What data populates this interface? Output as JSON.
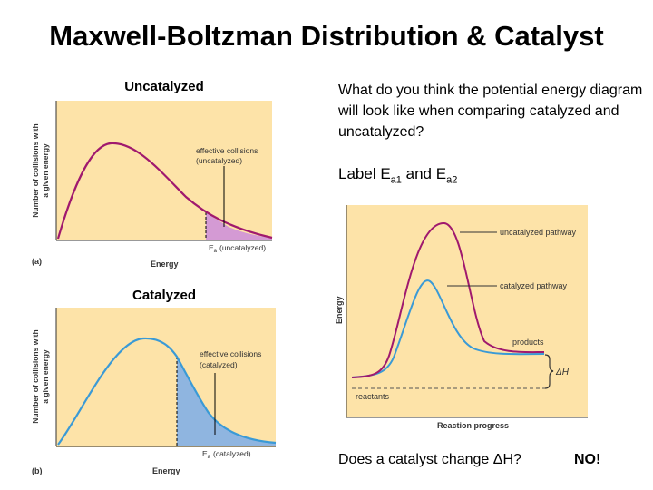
{
  "slide": {
    "title": "Maxwell-Boltzman Distribution & Catalyst",
    "prompt": "What do you think the potential energy diagram will look like when comparing catalyzed and uncatalyzed?",
    "label_ea": {
      "prefix": "Label E",
      "sub1": "a1",
      "mid": " and E",
      "sub2": "a2"
    },
    "question": "Does a catalyst change ΔH?",
    "answer": "NO!"
  },
  "uncatalyzed": {
    "caption": "Uncatalyzed",
    "ylabel_line1": "Number of collisions with",
    "ylabel_line2": "a given energy",
    "annotation_line1": "effective collisions",
    "annotation_line2": "(uncatalyzed)",
    "ea_label": "(uncatalyzed)",
    "xlabel": "Energy",
    "panel": "(a)",
    "colors": {
      "curve": "#a0196e",
      "fill": "#d49ad4",
      "bg": "#fde3a8"
    }
  },
  "catalyzed": {
    "caption": "Catalyzed",
    "ylabel_line1": "Number of collisions with",
    "ylabel_line2": "a given energy",
    "annotation_line1": "effective collisions",
    "annotation_line2": "(catalyzed)",
    "ea_label": "(catalyzed)",
    "xlabel": "Energy",
    "panel": "(b)",
    "colors": {
      "curve": "#3a9ad6",
      "fill": "#8fb5e0",
      "bg": "#fde3a8"
    }
  },
  "energy_diagram": {
    "ylabel": "Energy",
    "xlabel": "Reaction progress",
    "uncatalyzed_label": "uncatalyzed pathway",
    "catalyzed_label": "catalyzed pathway",
    "products_label": "products",
    "reactants_label": "reactants",
    "dh_label": "ΔH",
    "colors": {
      "uncatalyzed": "#a0196e",
      "catalyzed": "#3a9ad6",
      "bg": "#fde3a8"
    }
  }
}
